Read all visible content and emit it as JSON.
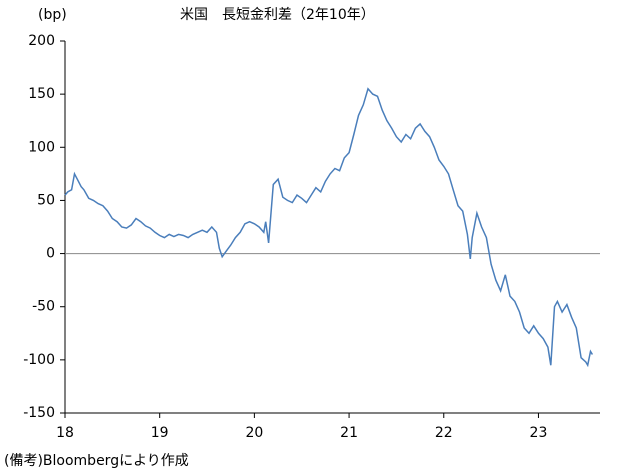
{
  "chart_data": {
    "type": "line",
    "title": "米国　長短金利差（2年10年）",
    "y_unit_label": "(bp)",
    "note": "(備考)Bloombergにより作成",
    "xlim": [
      18,
      23.65
    ],
    "xticks": [
      18,
      19,
      20,
      21,
      22,
      23
    ],
    "ylim": [
      -150,
      200
    ],
    "yticks": [
      -150,
      -100,
      -50,
      0,
      50,
      100,
      150,
      200
    ],
    "zero_line": true,
    "x": [
      18.0,
      18.03,
      18.07,
      18.1,
      18.13,
      18.17,
      18.2,
      18.25,
      18.3,
      18.35,
      18.4,
      18.45,
      18.5,
      18.55,
      18.6,
      18.65,
      18.7,
      18.75,
      18.8,
      18.85,
      18.9,
      18.95,
      19.0,
      19.05,
      19.1,
      19.15,
      19.2,
      19.25,
      19.3,
      19.35,
      19.4,
      19.45,
      19.5,
      19.55,
      19.6,
      19.63,
      19.66,
      19.7,
      19.75,
      19.8,
      19.85,
      19.9,
      19.95,
      20.0,
      20.05,
      20.1,
      20.12,
      20.15,
      20.2,
      20.25,
      20.3,
      20.35,
      20.4,
      20.45,
      20.5,
      20.55,
      20.6,
      20.65,
      20.7,
      20.75,
      20.8,
      20.85,
      20.9,
      20.95,
      21.0,
      21.05,
      21.1,
      21.15,
      21.2,
      21.25,
      21.3,
      21.35,
      21.4,
      21.45,
      21.5,
      21.55,
      21.6,
      21.65,
      21.7,
      21.75,
      21.8,
      21.85,
      21.9,
      21.95,
      22.0,
      22.05,
      22.1,
      22.15,
      22.2,
      22.25,
      22.28,
      22.3,
      22.35,
      22.4,
      22.45,
      22.5,
      22.55,
      22.6,
      22.65,
      22.7,
      22.75,
      22.8,
      22.85,
      22.9,
      22.95,
      23.0,
      23.05,
      23.1,
      23.13,
      23.17,
      23.2,
      23.25,
      23.3,
      23.35,
      23.4,
      23.45,
      23.5,
      23.52,
      23.55,
      23.57
    ],
    "series": [
      {
        "color": "#4a7ebb",
        "values": [
          55,
          58,
          60,
          75,
          70,
          63,
          60,
          52,
          50,
          47,
          45,
          40,
          33,
          30,
          25,
          24,
          27,
          33,
          30,
          26,
          24,
          20,
          17,
          15,
          18,
          16,
          18,
          17,
          15,
          18,
          20,
          22,
          20,
          25,
          20,
          5,
          -3,
          2,
          8,
          15,
          20,
          28,
          30,
          28,
          25,
          20,
          30,
          10,
          65,
          70,
          53,
          50,
          48,
          55,
          52,
          48,
          55,
          62,
          58,
          68,
          75,
          80,
          78,
          90,
          95,
          112,
          130,
          140,
          155,
          150,
          148,
          135,
          125,
          118,
          110,
          105,
          112,
          108,
          118,
          122,
          115,
          110,
          100,
          88,
          82,
          75,
          60,
          45,
          40,
          18,
          -5,
          15,
          38,
          25,
          15,
          -10,
          -25,
          -35,
          -20,
          -40,
          -45,
          -55,
          -70,
          -75,
          -68,
          -75,
          -80,
          -88,
          -105,
          -50,
          -45,
          -55,
          -48,
          -60,
          -70,
          -98,
          -102,
          -105,
          -92,
          -95
        ]
      }
    ]
  }
}
